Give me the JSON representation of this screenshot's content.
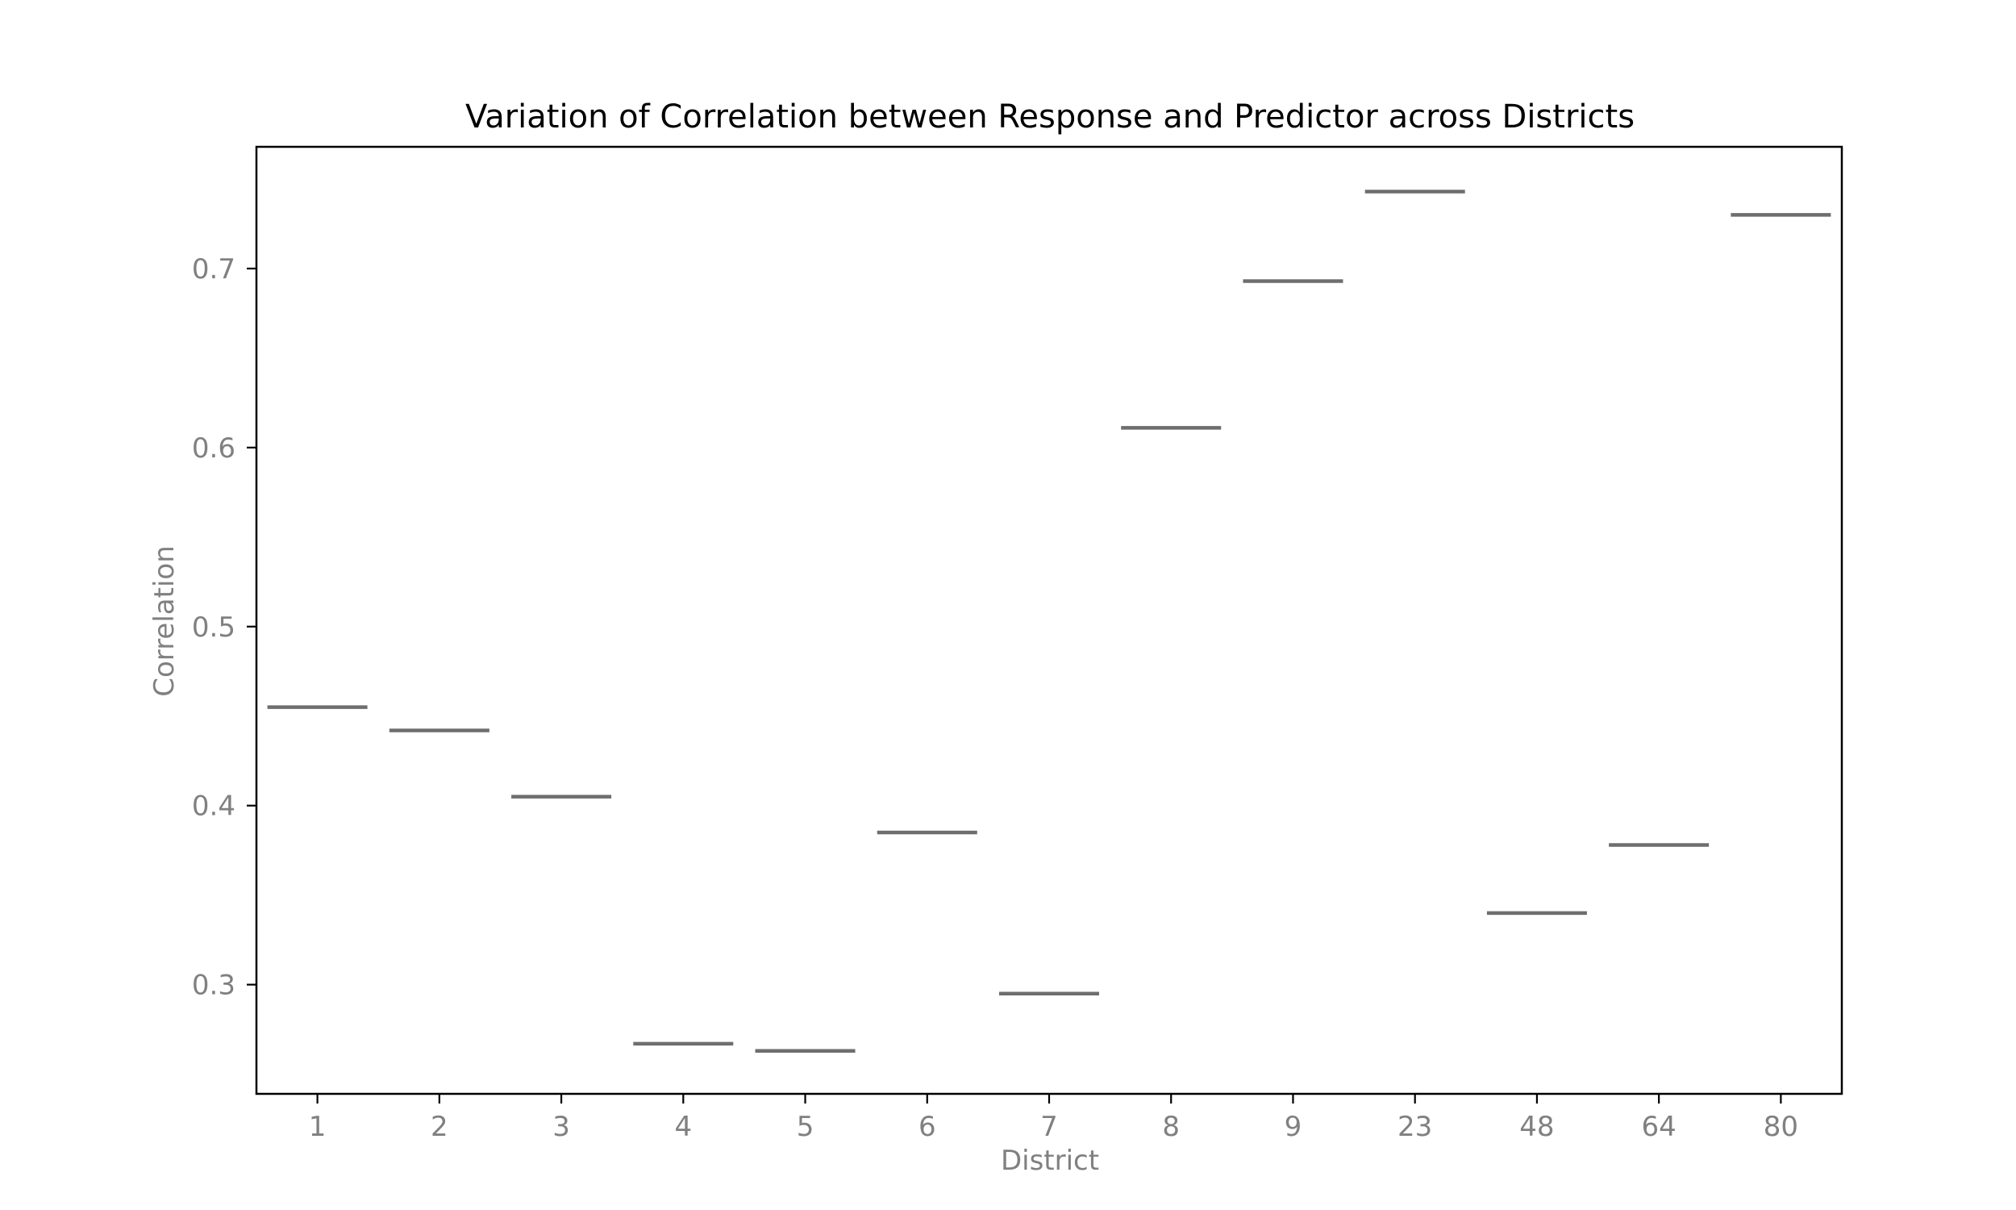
{
  "chart_data": {
    "type": "box",
    "title": "Variation of Correlation between Response and Predictor across Districts",
    "xlabel": "District",
    "ylabel": "Correlation",
    "categories": [
      "1",
      "2",
      "3",
      "4",
      "5",
      "6",
      "7",
      "8",
      "9",
      "23",
      "48",
      "64",
      "80"
    ],
    "values": [
      0.455,
      0.442,
      0.405,
      0.267,
      0.263,
      0.385,
      0.295,
      0.611,
      0.693,
      0.743,
      0.34,
      0.378,
      0.73
    ],
    "ylim": [
      0.239,
      0.768
    ],
    "yticks": [
      0.3,
      0.4,
      0.5,
      0.6,
      0.7
    ],
    "ytick_labels": [
      "0.3",
      "0.4",
      "0.5",
      "0.6",
      "0.7"
    ],
    "grid": false,
    "legend": "none",
    "colors": {
      "marker": "#6e6e6e",
      "frame": "#000000",
      "text": "#808080",
      "title": "#000000"
    }
  }
}
